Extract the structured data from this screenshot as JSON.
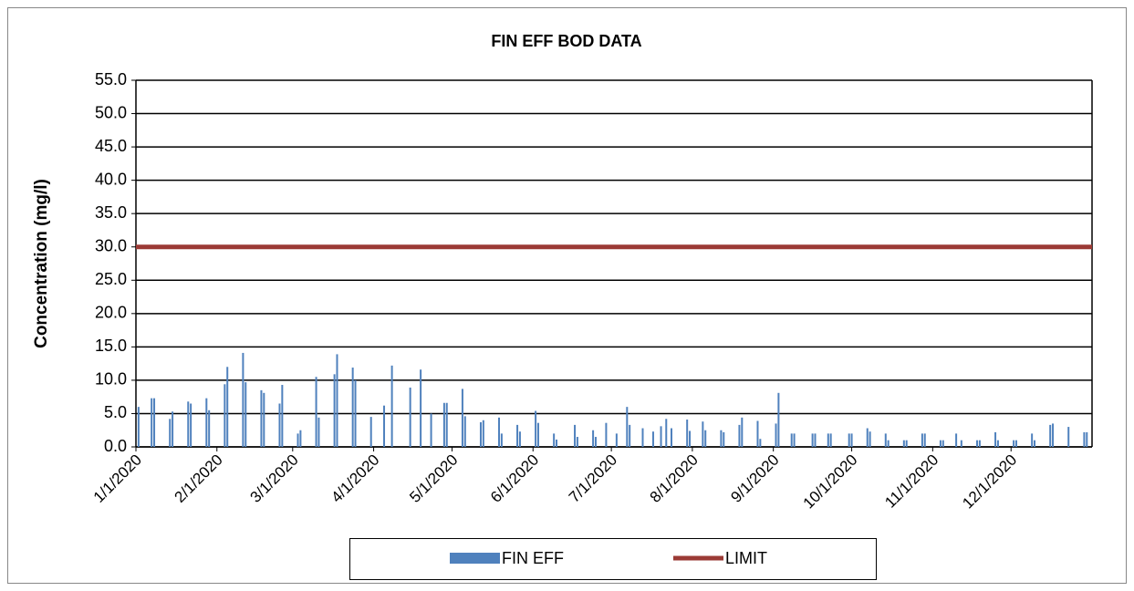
{
  "chart_data": {
    "type": "bar",
    "title": "FIN EFF BOD DATA",
    "y_label": "Concentration (mg/l)",
    "xlim": [
      "1/1/2020",
      "1/1/2021"
    ],
    "xticks": [
      "1/1/2020",
      "2/1/2020",
      "3/1/2020",
      "4/1/2020",
      "5/1/2020",
      "6/1/2020",
      "7/1/2020",
      "8/1/2020",
      "9/1/2020",
      "10/1/2020",
      "11/1/2020",
      "12/1/2020"
    ],
    "ylim": [
      0,
      55
    ],
    "yticks": [
      {
        "value": 0,
        "label": "0.0"
      },
      {
        "value": 5,
        "label": "5.0"
      },
      {
        "value": 10,
        "label": "10.0"
      },
      {
        "value": 15,
        "label": "15.0"
      },
      {
        "value": 20,
        "label": "20.0"
      },
      {
        "value": 25,
        "label": "25.0"
      },
      {
        "value": 30,
        "label": "30.0"
      },
      {
        "value": 35,
        "label": "35.0"
      },
      {
        "value": 40,
        "label": "40.0"
      },
      {
        "value": 45,
        "label": "45.0"
      },
      {
        "value": 50,
        "label": "50.0"
      },
      {
        "value": 55,
        "label": "55.0"
      }
    ],
    "grid": true,
    "legend": "bottom",
    "series": [
      {
        "name": "FIN EFF",
        "type": "bar",
        "color": "#4f81bd",
        "x": [
          "1/2/2020",
          "1/7/2020",
          "1/8/2020",
          "1/14/2020",
          "1/15/2020",
          "1/21/2020",
          "1/22/2020",
          "1/28/2020",
          "1/29/2020",
          "2/4/2020",
          "2/5/2020",
          "2/11/2020",
          "2/12/2020",
          "2/18/2020",
          "2/19/2020",
          "2/25/2020",
          "2/26/2020",
          "3/3/2020",
          "3/4/2020",
          "3/10/2020",
          "3/11/2020",
          "3/17/2020",
          "3/18/2020",
          "3/24/2020",
          "3/25/2020",
          "3/31/2020",
          "4/5/2020",
          "4/8/2020",
          "4/15/2020",
          "4/19/2020",
          "4/23/2020",
          "4/28/2020",
          "4/29/2020",
          "5/5/2020",
          "5/6/2020",
          "5/12/2020",
          "5/13/2020",
          "5/19/2020",
          "5/20/2020",
          "5/26/2020",
          "5/27/2020",
          "6/2/2020",
          "6/3/2020",
          "6/9/2020",
          "6/10/2020",
          "6/17/2020",
          "6/18/2020",
          "6/24/2020",
          "6/25/2020",
          "6/29/2020",
          "7/3/2020",
          "7/7/2020",
          "7/8/2020",
          "7/13/2020",
          "7/17/2020",
          "7/20/2020",
          "7/22/2020",
          "7/24/2020",
          "7/30/2020",
          "7/31/2020",
          "8/5/2020",
          "8/6/2020",
          "8/12/2020",
          "8/13/2020",
          "8/19/2020",
          "8/20/2020",
          "8/26/2020",
          "8/27/2020",
          "9/2/2020",
          "9/3/2020",
          "9/8/2020",
          "9/9/2020",
          "9/16/2020",
          "9/17/2020",
          "9/22/2020",
          "9/23/2020",
          "9/30/2020",
          "10/1/2020",
          "10/7/2020",
          "10/8/2020",
          "10/14/2020",
          "10/15/2020",
          "10/21/2020",
          "10/22/2020",
          "10/28/2020",
          "10/29/2020",
          "11/4/2020",
          "11/5/2020",
          "11/10/2020",
          "11/12/2020",
          "11/18/2020",
          "11/19/2020",
          "11/25/2020",
          "11/26/2020",
          "12/2/2020",
          "12/3/2020",
          "12/9/2020",
          "12/10/2020",
          "12/16/2020",
          "12/17/2020",
          "12/23/2020",
          "12/29/2020",
          "12/30/2020"
        ],
        "values": [
          6.0,
          7.3,
          7.3,
          4.2,
          5.3,
          6.8,
          6.5,
          7.3,
          5.5,
          9.4,
          12.0,
          14.1,
          9.7,
          8.5,
          8.1,
          6.5,
          9.3,
          2.0,
          2.5,
          10.5,
          4.4,
          10.9,
          13.9,
          11.9,
          10.0,
          4.5,
          6.2,
          12.2,
          8.9,
          11.6,
          5.0,
          6.6,
          6.6,
          8.7,
          4.6,
          3.7,
          4.0,
          4.4,
          2.0,
          3.3,
          2.3,
          5.4,
          3.6,
          2.0,
          1.1,
          3.3,
          1.5,
          2.5,
          1.5,
          3.6,
          2.0,
          6.0,
          3.3,
          2.8,
          2.3,
          3.1,
          4.2,
          2.8,
          4.1,
          2.4,
          3.8,
          2.5,
          2.5,
          2.2,
          3.3,
          4.4,
          3.9,
          1.2,
          3.5,
          8.1,
          2.0,
          2.0,
          2.0,
          2.0,
          2.0,
          2.0,
          2.0,
          2.0,
          2.8,
          2.3,
          2.0,
          1.0,
          1.0,
          1.0,
          2.0,
          2.0,
          1.0,
          1.0,
          2.0,
          1.0,
          1.0,
          1.0,
          2.2,
          1.0,
          1.0,
          1.0,
          2.0,
          1.0,
          3.3,
          3.5,
          3.0,
          2.2,
          2.2
        ]
      },
      {
        "name": "LIMIT",
        "type": "line",
        "color": "#9b3a35",
        "x": [
          "1/1/2020",
          "1/1/2021"
        ],
        "values": [
          30,
          30
        ]
      }
    ]
  }
}
